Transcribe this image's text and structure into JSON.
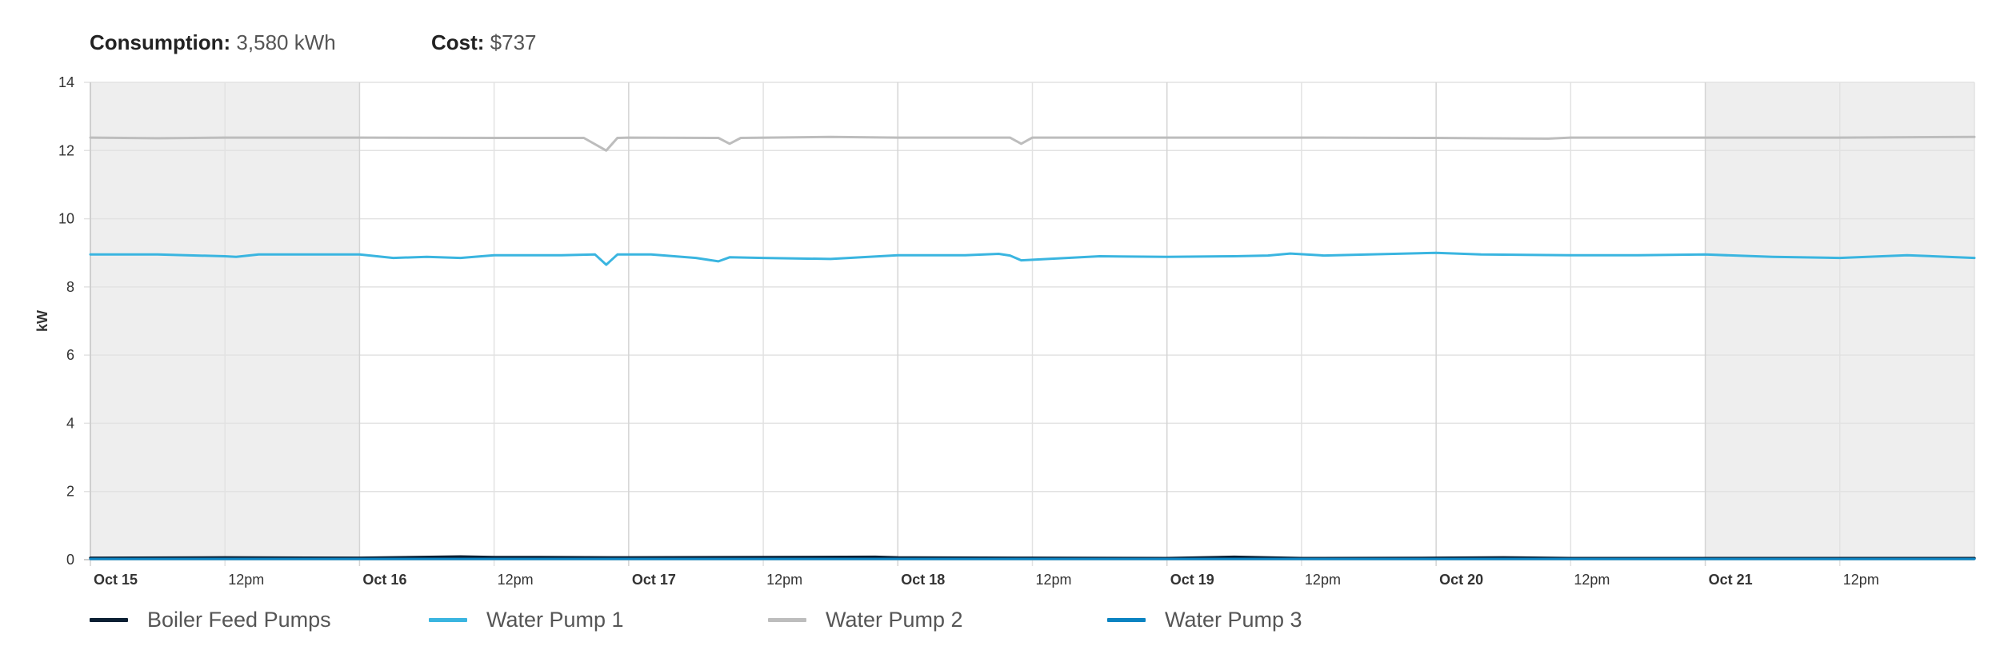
{
  "summary": {
    "consumption_label": "Consumption:",
    "consumption_value": "3,580 kWh",
    "cost_label": "Cost:",
    "cost_value": "$737"
  },
  "chart_data": {
    "type": "line",
    "title": "",
    "xlabel": "",
    "ylabel": "kW",
    "ylim": [
      0,
      14
    ],
    "yticks": [
      0,
      2,
      4,
      6,
      8,
      10,
      12,
      14
    ],
    "xrange_hours": [
      0,
      168
    ],
    "xticks": [
      {
        "hour": 0,
        "label": "Oct 15",
        "bold": true
      },
      {
        "hour": 12,
        "label": "12pm",
        "bold": false
      },
      {
        "hour": 24,
        "label": "Oct 16",
        "bold": true
      },
      {
        "hour": 36,
        "label": "12pm",
        "bold": false
      },
      {
        "hour": 48,
        "label": "Oct 17",
        "bold": true
      },
      {
        "hour": 60,
        "label": "12pm",
        "bold": false
      },
      {
        "hour": 72,
        "label": "Oct 18",
        "bold": true
      },
      {
        "hour": 84,
        "label": "12pm",
        "bold": false
      },
      {
        "hour": 96,
        "label": "Oct 19",
        "bold": true
      },
      {
        "hour": 108,
        "label": "12pm",
        "bold": false
      },
      {
        "hour": 120,
        "label": "Oct 20",
        "bold": true
      },
      {
        "hour": 132,
        "label": "12pm",
        "bold": false
      },
      {
        "hour": 144,
        "label": "Oct 21",
        "bold": true
      },
      {
        "hour": 156,
        "label": "12pm",
        "bold": false
      }
    ],
    "shaded_ranges_hours": [
      [
        0,
        24
      ],
      [
        144,
        168
      ]
    ],
    "grid": true,
    "legend_position": "bottom",
    "series": [
      {
        "name": "Boiler Feed Pumps",
        "color": "#0b1f33",
        "x": [
          0,
          12,
          24,
          33,
          36,
          40,
          48,
          60,
          70,
          72,
          84,
          96,
          102,
          108,
          120,
          126,
          132,
          144,
          156,
          168
        ],
        "values": [
          0.05,
          0.06,
          0.05,
          0.09,
          0.07,
          0.07,
          0.06,
          0.07,
          0.08,
          0.06,
          0.05,
          0.04,
          0.08,
          0.04,
          0.05,
          0.06,
          0.04,
          0.04,
          0.04,
          0.04
        ]
      },
      {
        "name": "Water Pump 1",
        "color": "#3ab5e0",
        "x": [
          0,
          6,
          12,
          13,
          15,
          24,
          27,
          30,
          33,
          36,
          42,
          45,
          46,
          47,
          50,
          54,
          56,
          57,
          60,
          66,
          72,
          78,
          81,
          82,
          83,
          90,
          96,
          102,
          105,
          107,
          110,
          114,
          120,
          124,
          132,
          138,
          144,
          150,
          156,
          162,
          168
        ],
        "values": [
          8.95,
          8.95,
          8.9,
          8.88,
          8.95,
          8.95,
          8.85,
          8.88,
          8.85,
          8.93,
          8.93,
          8.95,
          8.65,
          8.95,
          8.95,
          8.85,
          8.75,
          8.87,
          8.85,
          8.82,
          8.93,
          8.93,
          8.97,
          8.92,
          8.78,
          8.9,
          8.88,
          8.9,
          8.92,
          8.98,
          8.92,
          8.95,
          9.0,
          8.95,
          8.93,
          8.93,
          8.95,
          8.88,
          8.85,
          8.93,
          8.85
        ]
      },
      {
        "name": "Water Pump 2",
        "color": "#bdbdbd",
        "x": [
          0,
          6,
          12,
          24,
          36,
          44,
          46,
          47,
          48,
          56,
          57,
          58,
          66,
          72,
          82,
          83,
          84,
          96,
          108,
          120,
          130,
          132,
          144,
          156,
          168
        ],
        "values": [
          12.38,
          12.36,
          12.38,
          12.38,
          12.37,
          12.37,
          12.0,
          12.37,
          12.38,
          12.37,
          12.2,
          12.37,
          12.4,
          12.38,
          12.38,
          12.2,
          12.38,
          12.38,
          12.38,
          12.37,
          12.35,
          12.38,
          12.38,
          12.38,
          12.4
        ]
      },
      {
        "name": "Water Pump 3",
        "color": "#0a83c1",
        "x": [
          0,
          12,
          24,
          48,
          72,
          96,
          120,
          144,
          168
        ],
        "values": [
          0.02,
          0.02,
          0.02,
          0.02,
          0.02,
          0.02,
          0.02,
          0.02,
          0.02
        ]
      }
    ]
  }
}
